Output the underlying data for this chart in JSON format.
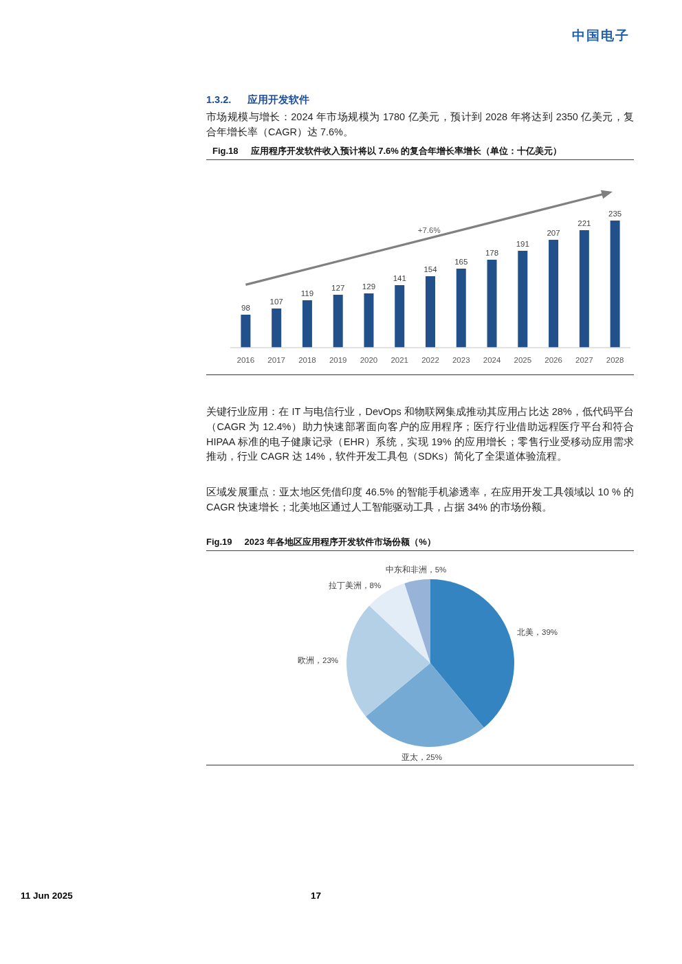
{
  "chart_data": [
    {
      "type": "bar",
      "title": "Fig.18     应用程序开发软件收入预计将以 7.6% 的复合年增长率增长（单位：十亿美元）",
      "categories": [
        "2016",
        "2017",
        "2018",
        "2019",
        "2020",
        "2021",
        "2022",
        "2023",
        "2024",
        "2025",
        "2026",
        "2027",
        "2028"
      ],
      "values": [
        98,
        107,
        119,
        127,
        129,
        141,
        154,
        165,
        178,
        191,
        207,
        221,
        235
      ],
      "color": "#22508A",
      "ylim": [
        50,
        235
      ],
      "data_labels": true,
      "annotations": [
        "中国电子",
        "1.3.2.",
        "应用开发软件",
        "市场规模与增长：2024 年市场规模为 1780 亿美元，预计到 2028 年将达到 2350 亿美元，复合年增长率（CAGR）达 7.6%。",
        "+7.6%"
      ]
    },
    {
      "type": "pie",
      "title": "Fig.19     2023 年各地区应用程序开发软件市场份额（%）",
      "categories": [
        "北美",
        "亚太",
        "欧洲",
        "拉丁美洲",
        "中东和非洲"
      ],
      "values": [
        39,
        25,
        23,
        8,
        5
      ],
      "colors": [
        "#3584C2",
        "#75AAD4",
        "#B3D0E6",
        "#E3EDF7",
        "#98B3D8"
      ],
      "value_labels": [
        "39%",
        "25%",
        "23%",
        "8%",
        "5%"
      ],
      "annotations": [
        "关键行业应用：在 IT 与电信行业，DevOps 和物联网集成推动其应用占比达 28%，低代码平台（CAGR 为 12.4%）助力快速部署面向客户的应用程序；医疗行业借助远程医疗平台和符合 HIPAA 标准的电子健康记录（EHR）系统，实现 19% 的应用增长；零售行业受移动应用需求推动，行业 CAGR 达 14%，软件开发工具包（SDKs）简化了全渠道体验流程。",
        "区域发展重点：亚太地区凭借印度 46.5% 的智能手机渗透率，在应用开发工具领域以 10 % 的 CAGR 快速增长；北美地区通过人工智能驱动工具，占据 34% 的市场份额。",
        "11 Jun 2025",
        "17"
      ]
    }
  ]
}
